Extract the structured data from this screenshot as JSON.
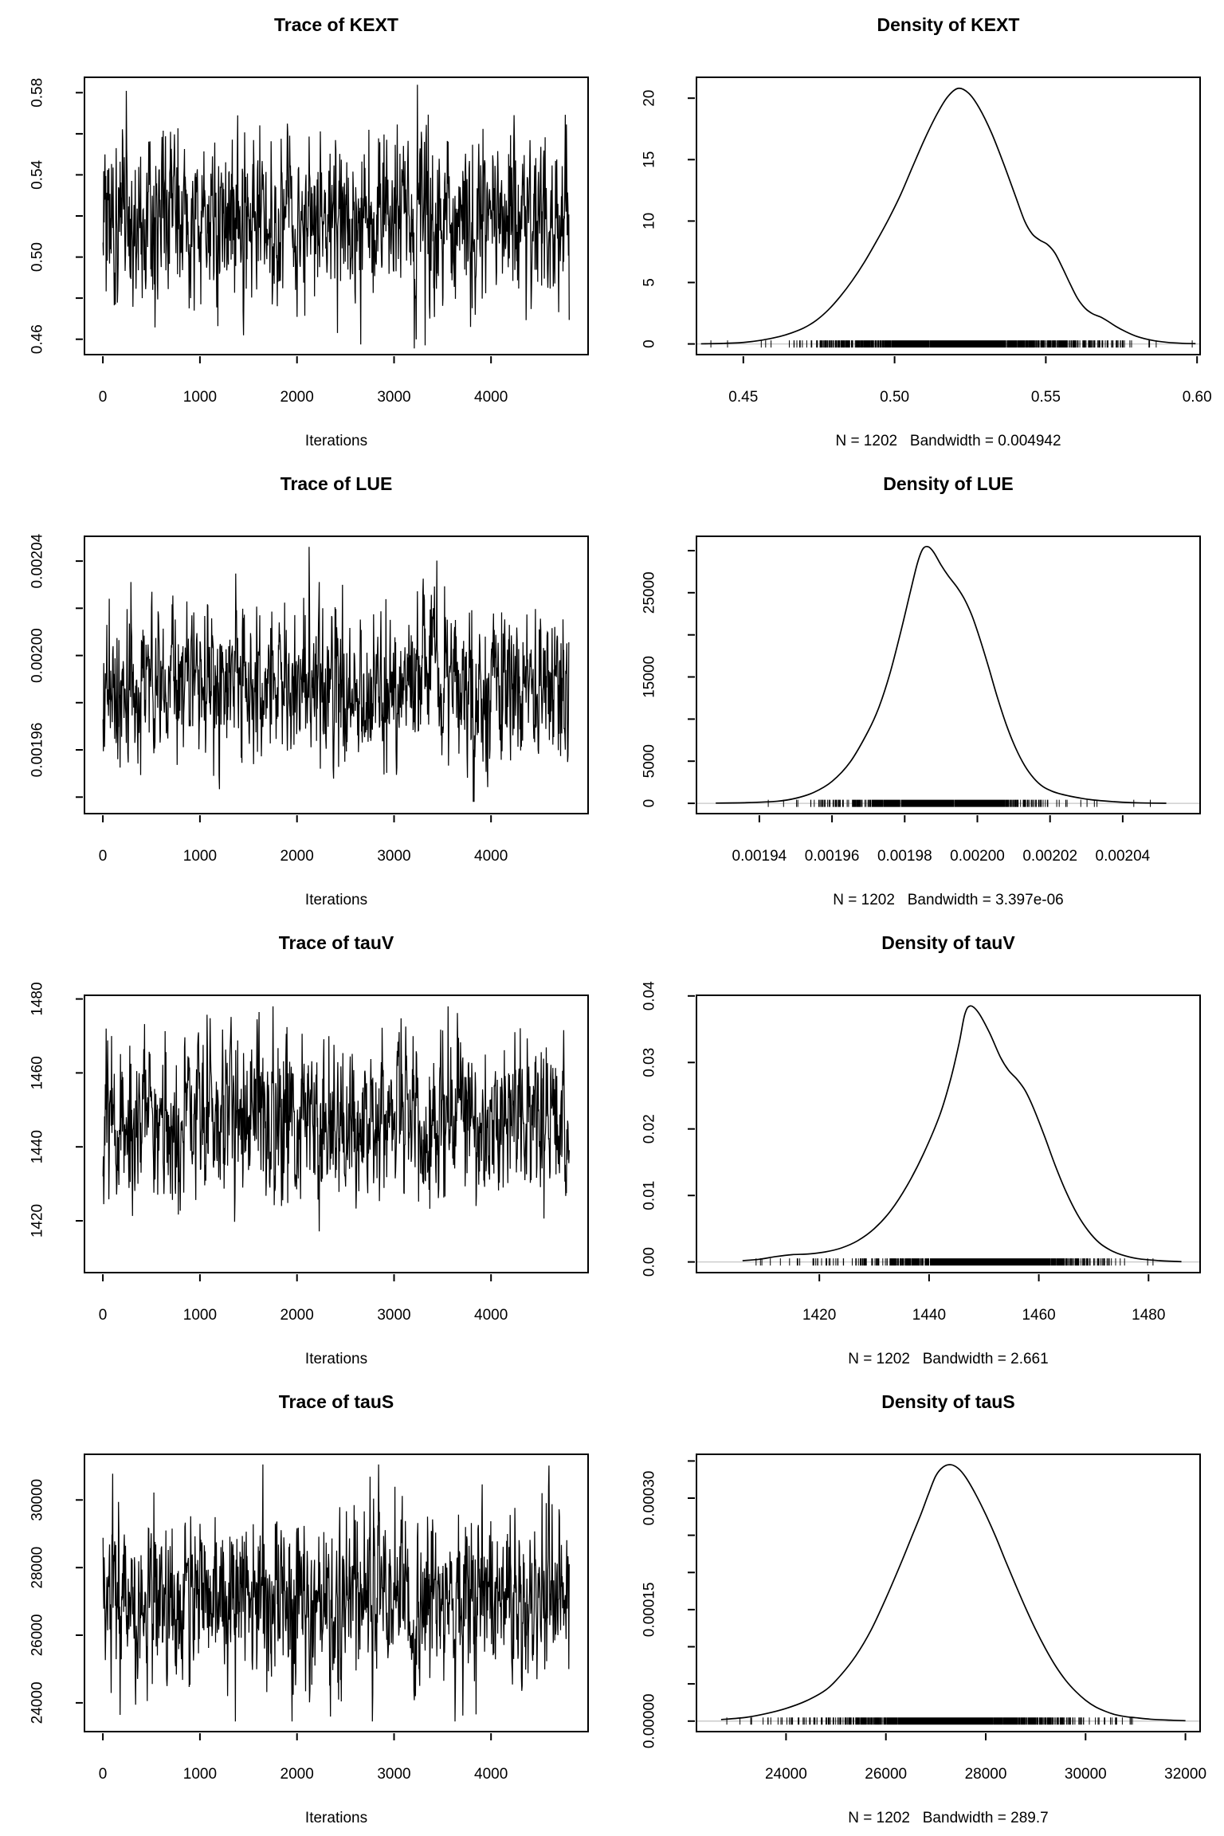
{
  "figure": {
    "background_color": "#ffffff",
    "foreground_color": "#000000",
    "zero_line_color": "#c6c6c6",
    "rows": 4,
    "cols": 2
  },
  "chart_data": {
    "type": "line",
    "description": "MCMC diagnostics: trace plots (left) and kernel density plots with data rug (right) for parameters KEXT, LUE, tauV, tauS",
    "sample_size": 1202,
    "panels": [
      {
        "id": "trace-kext",
        "kind": "trace",
        "title": "Trace of KEXT",
        "xlabel": "Iterations",
        "xlim": [
          -190,
          5000
        ],
        "ylim": [
          0.4525,
          0.5875
        ],
        "xticks": {
          "values": [
            0,
            1000,
            2000,
            3000,
            4000
          ],
          "labels": [
            "0",
            "1000",
            "2000",
            "3000",
            "4000"
          ]
        },
        "yticks": {
          "values": [
            0.46,
            0.48,
            0.5,
            0.52,
            0.54,
            0.56,
            0.58
          ],
          "labels": [
            "0.46",
            "",
            "0.50",
            "",
            "0.54",
            "",
            "0.58"
          ]
        },
        "series": {
          "n": 1202,
          "x_start": 1,
          "x_end": 4805,
          "mean": 0.519,
          "sd": 0.0205,
          "min": 0.4555,
          "max": 0.5845,
          "ar": 0.35,
          "seed": 101
        }
      },
      {
        "id": "density-kext",
        "kind": "density",
        "title": "Density of KEXT",
        "xlabel": "N = 1202   Bandwidth = 0.004942",
        "xlim": [
          0.4345,
          0.601
        ],
        "ylim": [
          -0.87,
          21.7
        ],
        "xticks": {
          "values": [
            0.45,
            0.5,
            0.55,
            0.6
          ],
          "labels": [
            "0.45",
            "0.50",
            "0.55",
            "0.60"
          ]
        },
        "yticks": {
          "values": [
            0,
            5,
            10,
            15,
            20
          ],
          "labels": [
            "0",
            "5",
            "10",
            "15",
            "20"
          ]
        },
        "peak": {
          "x": 0.521,
          "y": 20.8
        },
        "curve": [
          [
            0.436,
            0.01
          ],
          [
            0.443,
            0.04
          ],
          [
            0.45,
            0.12
          ],
          [
            0.456,
            0.3
          ],
          [
            0.462,
            0.6
          ],
          [
            0.466,
            0.9
          ],
          [
            0.47,
            1.3
          ],
          [
            0.474,
            1.9
          ],
          [
            0.478,
            2.75
          ],
          [
            0.482,
            3.85
          ],
          [
            0.486,
            5.15
          ],
          [
            0.49,
            6.65
          ],
          [
            0.494,
            8.35
          ],
          [
            0.498,
            10.15
          ],
          [
            0.502,
            12.15
          ],
          [
            0.506,
            14.45
          ],
          [
            0.51,
            16.7
          ],
          [
            0.514,
            18.7
          ],
          [
            0.5175,
            20.1
          ],
          [
            0.521,
            20.8
          ],
          [
            0.5245,
            20.4
          ],
          [
            0.528,
            19.2
          ],
          [
            0.532,
            17.2
          ],
          [
            0.536,
            14.7
          ],
          [
            0.54,
            12.0
          ],
          [
            0.543,
            10.0
          ],
          [
            0.5455,
            8.95
          ],
          [
            0.548,
            8.45
          ],
          [
            0.5505,
            8.1
          ],
          [
            0.553,
            7.4
          ],
          [
            0.5555,
            6.2
          ],
          [
            0.558,
            4.9
          ],
          [
            0.5605,
            3.7
          ],
          [
            0.563,
            2.9
          ],
          [
            0.5655,
            2.45
          ],
          [
            0.568,
            2.2
          ],
          [
            0.5705,
            1.85
          ],
          [
            0.573,
            1.45
          ],
          [
            0.576,
            1.05
          ],
          [
            0.58,
            0.62
          ],
          [
            0.585,
            0.3
          ],
          [
            0.59,
            0.13
          ],
          [
            0.595,
            0.05
          ],
          [
            0.5995,
            0.02
          ]
        ],
        "rug": {
          "n": 1202,
          "seed": 111
        }
      },
      {
        "id": "trace-lue",
        "kind": "trace",
        "title": "Trace of LUE",
        "xlabel": "Iterations",
        "xlim": [
          -190,
          5000
        ],
        "ylim": [
          0.001933,
          0.0020505
        ],
        "xticks": {
          "values": [
            0,
            1000,
            2000,
            3000,
            4000
          ],
          "labels": [
            "0",
            "1000",
            "2000",
            "3000",
            "4000"
          ]
        },
        "yticks": {
          "values": [
            0.00194,
            0.00196,
            0.00198,
            0.002,
            0.00202,
            0.00204
          ],
          "labels": [
            "",
            "0.00196",
            "",
            "0.00200",
            "",
            "0.00204"
          ]
        },
        "series": {
          "n": 1202,
          "x_start": 1,
          "x_end": 4805,
          "mean": 0.001988,
          "sd": 1.6e-05,
          "min": 0.001938,
          "max": 0.002046,
          "ar": 0.35,
          "seed": 202
        }
      },
      {
        "id": "density-lue",
        "kind": "density",
        "title": "Density of LUE",
        "xlabel": "N = 1202   Bandwidth = 3.397e-06",
        "xlim": [
          0.0019227,
          0.0020613
        ],
        "ylim": [
          -1220,
          31700
        ],
        "xticks": {
          "values": [
            0.00194,
            0.00196,
            0.00198,
            0.002,
            0.00202,
            0.00204
          ],
          "labels": [
            "0.00194",
            "0.00196",
            "0.00198",
            "0.00200",
            "0.00202",
            "0.00204"
          ]
        },
        "yticks": {
          "values": [
            0,
            5000,
            10000,
            15000,
            20000,
            25000,
            30000
          ],
          "labels": [
            "0",
            "5000",
            "",
            "15000",
            "",
            "25000",
            ""
          ]
        },
        "peak": {
          "x": 0.0019865,
          "y": 30450
        },
        "curve": [
          [
            0.001928,
            30
          ],
          [
            0.0019365,
            80
          ],
          [
            0.001945,
            250
          ],
          [
            0.00195,
            600
          ],
          [
            0.001955,
            1300
          ],
          [
            0.00196,
            2600
          ],
          [
            0.001965,
            4900
          ],
          [
            0.00197,
            8600
          ],
          [
            0.001973,
            11500
          ],
          [
            0.001976,
            15500
          ],
          [
            0.001979,
            20500
          ],
          [
            0.0019815,
            25000
          ],
          [
            0.0019835,
            28500
          ],
          [
            0.001985,
            30200
          ],
          [
            0.0019865,
            30450
          ],
          [
            0.001988,
            29800
          ],
          [
            0.00199,
            28300
          ],
          [
            0.001992,
            27000
          ],
          [
            0.0019945,
            25600
          ],
          [
            0.0019965,
            24200
          ],
          [
            0.0019985,
            22300
          ],
          [
            0.0020005,
            19800
          ],
          [
            0.002003,
            16300
          ],
          [
            0.0020055,
            12600
          ],
          [
            0.002008,
            9300
          ],
          [
            0.0020105,
            6600
          ],
          [
            0.002013,
            4500
          ],
          [
            0.0020155,
            3000
          ],
          [
            0.002018,
            2000
          ],
          [
            0.0020205,
            1450
          ],
          [
            0.002023,
            1100
          ],
          [
            0.0020255,
            850
          ],
          [
            0.002028,
            650
          ],
          [
            0.002031,
            450
          ],
          [
            0.002035,
            280
          ],
          [
            0.00204,
            130
          ],
          [
            0.002045,
            50
          ],
          [
            0.002052,
            10
          ]
        ],
        "rug": {
          "n": 1202,
          "seed": 222
        }
      },
      {
        "id": "trace-tauv",
        "kind": "trace",
        "title": "Trace of tauV",
        "xlabel": "Iterations",
        "xlim": [
          -190,
          5000
        ],
        "ylim": [
          1406,
          1481
        ],
        "xticks": {
          "values": [
            0,
            1000,
            2000,
            3000,
            4000
          ],
          "labels": [
            "0",
            "1000",
            "2000",
            "3000",
            "4000"
          ]
        },
        "yticks": {
          "values": [
            1420,
            1440,
            1460,
            1480
          ],
          "labels": [
            "1420",
            "1440",
            "1460",
            "1480"
          ]
        },
        "series": {
          "n": 1202,
          "x_start": 1,
          "x_end": 4805,
          "mean": 1446.5,
          "sd": 11.0,
          "min": 1409,
          "max": 1478,
          "ar": 0.35,
          "seed": 303
        }
      },
      {
        "id": "density-tauv",
        "kind": "density",
        "title": "Density of tauV",
        "xlabel": "N = 1202   Bandwidth = 2.661",
        "xlim": [
          1397.6,
          1489.4
        ],
        "ylim": [
          -0.0016,
          0.0401
        ],
        "xticks": {
          "values": [
            1420,
            1440,
            1460,
            1480
          ],
          "labels": [
            "1420",
            "1440",
            "1460",
            "1480"
          ]
        },
        "yticks": {
          "values": [
            0,
            0.01,
            0.02,
            0.03,
            0.04
          ],
          "labels": [
            "0.00",
            "0.01",
            "0.02",
            "0.03",
            "0.04"
          ]
        },
        "peak": {
          "x": 1447,
          "y": 0.0385
        },
        "curve": [
          [
            1406,
            0.0002
          ],
          [
            1409,
            0.0004
          ],
          [
            1412,
            0.0008
          ],
          [
            1415,
            0.0011
          ],
          [
            1418,
            0.0012
          ],
          [
            1421,
            0.0015
          ],
          [
            1424,
            0.0021
          ],
          [
            1427,
            0.0032
          ],
          [
            1430,
            0.005
          ],
          [
            1433,
            0.0077
          ],
          [
            1436,
            0.0115
          ],
          [
            1439,
            0.0163
          ],
          [
            1442,
            0.0222
          ],
          [
            1444,
            0.0277
          ],
          [
            1445.5,
            0.033
          ],
          [
            1446.5,
            0.0372
          ],
          [
            1447.5,
            0.0385
          ],
          [
            1449,
            0.0375
          ],
          [
            1451,
            0.0345
          ],
          [
            1453,
            0.0308
          ],
          [
            1454.5,
            0.0288
          ],
          [
            1456,
            0.0275
          ],
          [
            1457.5,
            0.0258
          ],
          [
            1459,
            0.0232
          ],
          [
            1461,
            0.019
          ],
          [
            1463,
            0.0145
          ],
          [
            1465,
            0.0105
          ],
          [
            1467,
            0.0072
          ],
          [
            1469,
            0.0047
          ],
          [
            1471,
            0.0029
          ],
          [
            1473,
            0.0018
          ],
          [
            1475,
            0.0011
          ],
          [
            1478,
            0.0005
          ],
          [
            1482,
            0.0002
          ],
          [
            1486,
            5e-05
          ]
        ],
        "rug": {
          "n": 1202,
          "seed": 333
        }
      },
      {
        "id": "trace-taus",
        "kind": "trace",
        "title": "Trace of tauS",
        "xlabel": "Iterations",
        "xlim": [
          -190,
          5000
        ],
        "ylim": [
          23150,
          31350
        ],
        "xticks": {
          "values": [
            0,
            1000,
            2000,
            3000,
            4000
          ],
          "labels": [
            "0",
            "1000",
            "2000",
            "3000",
            "4000"
          ]
        },
        "yticks": {
          "values": [
            24000,
            26000,
            28000,
            30000
          ],
          "labels": [
            "24000",
            "26000",
            "28000",
            "30000"
          ]
        },
        "series": {
          "n": 1202,
          "x_start": 1,
          "x_end": 4805,
          "mean": 27050,
          "sd": 1250,
          "min": 23450,
          "max": 31050,
          "ar": 0.35,
          "seed": 404
        }
      },
      {
        "id": "density-taus",
        "kind": "density",
        "title": "Density of tauS",
        "xlabel": "N = 1202   Bandwidth = 289.7",
        "xlim": [
          22207,
          32293
        ],
        "ylim": [
          -1.42e-05,
          0.000359
        ],
        "xticks": {
          "values": [
            24000,
            26000,
            28000,
            30000,
            32000
          ],
          "labels": [
            "24000",
            "26000",
            "28000",
            "30000",
            "32000"
          ]
        },
        "yticks": {
          "values": [
            0,
            5e-05,
            0.0001,
            0.00015,
            0.0002,
            0.00025,
            0.0003,
            0.00035
          ],
          "labels": [
            "0.00000",
            "",
            "",
            "0.00015",
            "",
            "",
            "0.00030",
            ""
          ]
        },
        "peak": {
          "x": 27300,
          "y": 0.000345
        },
        "curve": [
          [
            22700,
            2e-06
          ],
          [
            23200,
            5e-06
          ],
          [
            23600,
            1e-05
          ],
          [
            24000,
            1.7e-05
          ],
          [
            24400,
            2.7e-05
          ],
          [
            24800,
            4.2e-05
          ],
          [
            25100,
            6.2e-05
          ],
          [
            25400,
            8.8e-05
          ],
          [
            25700,
            0.000122
          ],
          [
            26000,
            0.000165
          ],
          [
            26300,
            0.000212
          ],
          [
            26500,
            0.000245
          ],
          [
            26700,
            0.000278
          ],
          [
            26850,
            0.000305
          ],
          [
            27000,
            0.00033
          ],
          [
            27150,
            0.000342
          ],
          [
            27300,
            0.000345
          ],
          [
            27450,
            0.00034
          ],
          [
            27600,
            0.000328
          ],
          [
            27800,
            0.000305
          ],
          [
            28000,
            0.000278
          ],
          [
            28200,
            0.000248
          ],
          [
            28400,
            0.000215
          ],
          [
            28600,
            0.000183
          ],
          [
            28800,
            0.000152
          ],
          [
            29000,
            0.000123
          ],
          [
            29200,
            9.7e-05
          ],
          [
            29400,
            7.4e-05
          ],
          [
            29600,
            5.5e-05
          ],
          [
            29800,
            4e-05
          ],
          [
            30000,
            2.8e-05
          ],
          [
            30200,
            1.9e-05
          ],
          [
            30400,
            1.3e-05
          ],
          [
            30600,
            8.5e-06
          ],
          [
            30800,
            6e-06
          ],
          [
            31000,
            4.5e-06
          ],
          [
            31300,
            2.5e-06
          ],
          [
            31700,
            1.2e-06
          ],
          [
            32000,
            5e-07
          ]
        ],
        "rug": {
          "n": 1202,
          "seed": 444
        }
      }
    ]
  }
}
